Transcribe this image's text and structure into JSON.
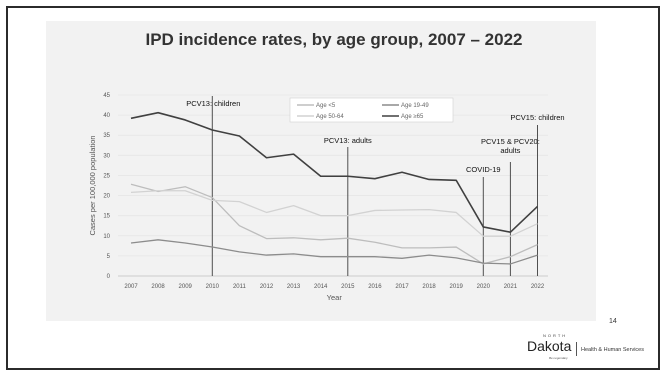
{
  "slide": {
    "page_number": "14",
    "logo": {
      "north": "NORTH",
      "dakota": "Dakota",
      "tagline": "Be Legendary",
      "department": "Health & Human Services"
    }
  },
  "colors": {
    "lt5": "#bdbdbd",
    "a19_49": "#8c8c8c",
    "a50_64": "#d2d2d2",
    "ge65": "#404040",
    "vline": "#505050",
    "grid": "#e6e6e6"
  },
  "chart_data": {
    "type": "line",
    "title": "IPD incidence rates, by age group, 2007 – 2022",
    "xlabel": "Year",
    "ylabel": "Cases per 100,000 population",
    "categories": [
      "2007",
      "2008",
      "2009",
      "2010",
      "2011",
      "2012",
      "2013",
      "2014",
      "2015",
      "2016",
      "2017",
      "2018",
      "2019",
      "2020",
      "2021",
      "2022"
    ],
    "ylim": [
      0,
      45
    ],
    "yticks": [
      0,
      5,
      10,
      15,
      20,
      25,
      30,
      35,
      40,
      45
    ],
    "grid": true,
    "legend_position": "top",
    "series": [
      {
        "name": "Age <5",
        "color_key": "lt5",
        "values": [
          22.8,
          21.0,
          22.2,
          19.5,
          12.5,
          9.3,
          9.5,
          9.0,
          9.4,
          8.4,
          7.0,
          7.0,
          7.2,
          3.0,
          4.8,
          7.8
        ]
      },
      {
        "name": "Age 19-49",
        "color_key": "a19_49",
        "values": [
          8.2,
          9.0,
          8.2,
          7.2,
          6.0,
          5.2,
          5.5,
          4.8,
          4.8,
          4.8,
          4.4,
          5.2,
          4.5,
          3.2,
          3.0,
          5.2
        ]
      },
      {
        "name": "Age 50-64",
        "color_key": "a50_64",
        "values": [
          20.8,
          21.2,
          21.2,
          18.8,
          18.5,
          15.8,
          17.5,
          15.0,
          15.0,
          16.3,
          16.4,
          16.5,
          15.8,
          9.9,
          9.9,
          13.0
        ]
      },
      {
        "name": "Age ≥65",
        "color_key": "ge65",
        "values": [
          39.2,
          40.6,
          38.8,
          36.3,
          34.8,
          29.4,
          30.3,
          24.8,
          24.8,
          24.2,
          25.8,
          24.0,
          23.8,
          12.2,
          10.9,
          17.3
        ]
      }
    ],
    "annotations": [
      {
        "id": "pcv13-children",
        "x": "2010",
        "lines": [
          "PCV13: children"
        ]
      },
      {
        "id": "pcv13-adults",
        "x": "2015",
        "lines": [
          "PCV13: adults"
        ]
      },
      {
        "id": "covid-19",
        "x": "2020",
        "lines": [
          "COVID-19"
        ]
      },
      {
        "id": "pcv15-pcv20",
        "x": "2021",
        "lines": [
          "PCV15 & PCV20:",
          "adults"
        ]
      },
      {
        "id": "pcv15-children",
        "x": "2022",
        "lines": [
          "PCV15: children"
        ]
      }
    ]
  }
}
